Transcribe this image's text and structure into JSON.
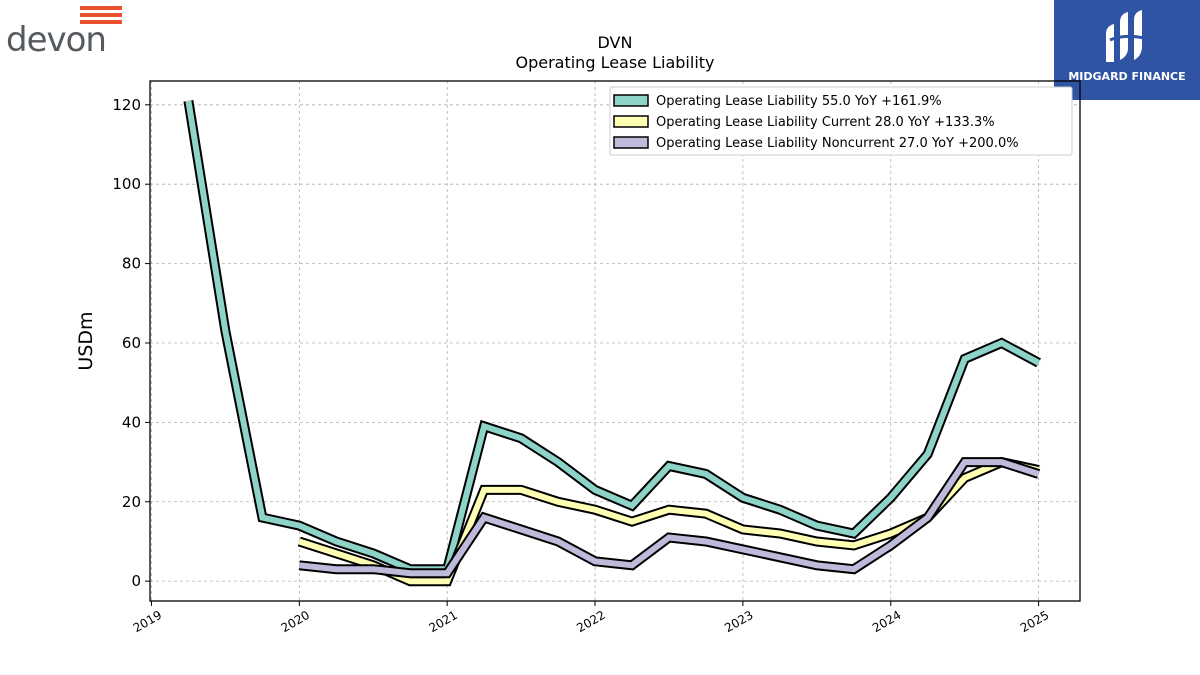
{
  "header": {
    "company_logo_text": "devon",
    "brand_logo_text": "MIDGARD FINANCE"
  },
  "chart_data": {
    "type": "line",
    "title": "DVN",
    "subtitle": "Operating Lease Liability",
    "ylabel": "USDm",
    "xlabel": "",
    "ylim": [
      -5,
      126
    ],
    "xlim": [
      2018.99,
      2025.28
    ],
    "yticks": [
      0,
      20,
      40,
      60,
      80,
      100,
      120
    ],
    "xticks": [
      2019,
      2020,
      2021,
      2022,
      2023,
      2024,
      2025
    ],
    "xtick_labels": [
      "2019",
      "2020",
      "2021",
      "2022",
      "2023",
      "2024",
      "2025"
    ],
    "grid": true,
    "legend_position": "top-right",
    "series": [
      {
        "name": "Operating Lease Liability",
        "legend": "Operating Lease Liability  55.0 YoY +161.9%",
        "color": "#8dd3c7",
        "x": [
          2019.25,
          2019.5,
          2019.75,
          2020.0,
          2020.25,
          2020.5,
          2020.75,
          2021.0,
          2021.25,
          2021.5,
          2021.75,
          2022.0,
          2022.25,
          2022.5,
          2022.75,
          2023.0,
          2023.25,
          2023.5,
          2023.75,
          2024.0,
          2024.25,
          2024.5,
          2024.75,
          2025.0
        ],
        "y": [
          121,
          63,
          16,
          14,
          10,
          7,
          3,
          3,
          39,
          36,
          30,
          23,
          19,
          29,
          27,
          21,
          18,
          14,
          12,
          21,
          32,
          56,
          60,
          55
        ]
      },
      {
        "name": "Operating Lease Liability Current",
        "legend": "Operating Lease Liability Current  28.0 YoY +133.3%",
        "color": "#ffffb3",
        "x": [
          2020.0,
          2020.25,
          2020.5,
          2020.75,
          2021.0,
          2021.25,
          2021.5,
          2021.75,
          2022.0,
          2022.25,
          2022.5,
          2022.75,
          2023.0,
          2023.25,
          2023.5,
          2023.75,
          2024.0,
          2024.25,
          2024.5,
          2024.75,
          2025.0
        ],
        "y": [
          10,
          7,
          4,
          0,
          0,
          23,
          23,
          20,
          18,
          15,
          18,
          17,
          13,
          12,
          10,
          9,
          12,
          16,
          26,
          30,
          28
        ]
      },
      {
        "name": "Operating Lease Liability Noncurrent",
        "legend": "Operating Lease Liability Noncurrent  27.0 YoY +200.0%",
        "color": "#bebada",
        "x": [
          2020.0,
          2020.25,
          2020.5,
          2020.75,
          2021.0,
          2021.25,
          2021.5,
          2021.75,
          2022.0,
          2022.25,
          2022.5,
          2022.75,
          2023.0,
          2023.25,
          2023.5,
          2023.75,
          2024.0,
          2024.25,
          2024.5,
          2024.75,
          2025.0
        ],
        "y": [
          4,
          3,
          3,
          2,
          2,
          16,
          13,
          10,
          5,
          4,
          11,
          10,
          8,
          6,
          4,
          3,
          9,
          16,
          30,
          30,
          27
        ]
      }
    ]
  }
}
